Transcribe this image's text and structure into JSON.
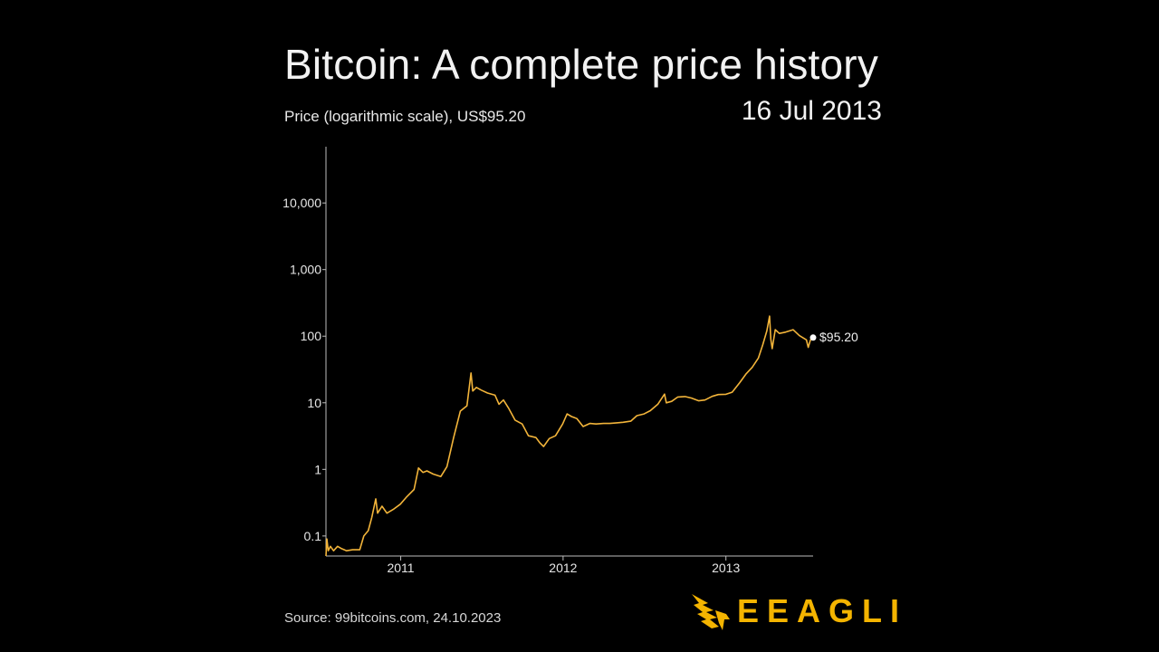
{
  "header": {
    "title": "Bitcoin: A complete price history",
    "subtitle": "Price (logarithmic scale), US$95.20",
    "date": "16 Jul 2013"
  },
  "footer": {
    "source": "Source: 99bitcoins.com, 24.10.2023",
    "brand": "EEAGLI"
  },
  "colors": {
    "background": "#000000",
    "line": "#f2b43a",
    "axis": "#bdbdbd",
    "brand": "#f4b400"
  },
  "chart_data": {
    "type": "line",
    "title": "Bitcoin: A complete price history",
    "ylabel": "Price (logarithmic scale), US$95.20",
    "xlabel": "",
    "y_scale": "log",
    "ylim": [
      0.05,
      70000
    ],
    "xlim": [
      "2010-07-17",
      "2013-07-16"
    ],
    "y_ticks": [
      {
        "value": 0.1,
        "label": "0.1"
      },
      {
        "value": 1,
        "label": "1"
      },
      {
        "value": 10,
        "label": "10"
      },
      {
        "value": 100,
        "label": "100"
      },
      {
        "value": 1000,
        "label": "1,000"
      },
      {
        "value": 10000,
        "label": "10,000"
      }
    ],
    "x_ticks": [
      {
        "value": "2011-01-01",
        "label": "2011"
      },
      {
        "value": "2012-01-01",
        "label": "2012"
      },
      {
        "value": "2013-01-01",
        "label": "2013"
      }
    ],
    "grid": false,
    "end_label": "$95.20",
    "series": [
      {
        "points": [
          [
            "2010-07-17",
            0.05
          ],
          [
            "2010-07-19",
            0.09
          ],
          [
            "2010-07-22",
            0.06
          ],
          [
            "2010-07-27",
            0.07
          ],
          [
            "2010-08-03",
            0.06
          ],
          [
            "2010-08-12",
            0.07
          ],
          [
            "2010-08-20",
            0.065
          ],
          [
            "2010-09-01",
            0.06
          ],
          [
            "2010-09-15",
            0.062
          ],
          [
            "2010-10-01",
            0.062
          ],
          [
            "2010-10-10",
            0.1
          ],
          [
            "2010-10-20",
            0.12
          ],
          [
            "2010-10-28",
            0.19
          ],
          [
            "2010-11-06",
            0.36
          ],
          [
            "2010-11-10",
            0.22
          ],
          [
            "2010-11-20",
            0.28
          ],
          [
            "2010-12-01",
            0.22
          ],
          [
            "2010-12-15",
            0.25
          ],
          [
            "2010-12-31",
            0.3
          ],
          [
            "2011-01-15",
            0.39
          ],
          [
            "2011-01-31",
            0.5
          ],
          [
            "2011-02-10",
            1.05
          ],
          [
            "2011-02-20",
            0.9
          ],
          [
            "2011-03-01",
            0.95
          ],
          [
            "2011-03-15",
            0.85
          ],
          [
            "2011-04-01",
            0.78
          ],
          [
            "2011-04-15",
            1.1
          ],
          [
            "2011-04-30",
            3.0
          ],
          [
            "2011-05-15",
            7.5
          ],
          [
            "2011-05-30",
            9.0
          ],
          [
            "2011-06-08",
            28.0
          ],
          [
            "2011-06-12",
            15.0
          ],
          [
            "2011-06-20",
            17.0
          ],
          [
            "2011-07-01",
            15.5
          ],
          [
            "2011-07-15",
            14.0
          ],
          [
            "2011-08-01",
            13.0
          ],
          [
            "2011-08-10",
            9.5
          ],
          [
            "2011-08-20",
            11.0
          ],
          [
            "2011-09-01",
            8.2
          ],
          [
            "2011-09-15",
            5.5
          ],
          [
            "2011-10-01",
            4.8
          ],
          [
            "2011-10-15",
            3.2
          ],
          [
            "2011-11-01",
            3.0
          ],
          [
            "2011-11-10",
            2.5
          ],
          [
            "2011-11-18",
            2.2
          ],
          [
            "2011-12-01",
            2.9
          ],
          [
            "2011-12-15",
            3.2
          ],
          [
            "2011-12-31",
            4.8
          ],
          [
            "2012-01-10",
            6.8
          ],
          [
            "2012-01-20",
            6.2
          ],
          [
            "2012-02-01",
            5.8
          ],
          [
            "2012-02-15",
            4.4
          ],
          [
            "2012-03-01",
            4.9
          ],
          [
            "2012-03-15",
            4.8
          ],
          [
            "2012-04-01",
            4.9
          ],
          [
            "2012-04-15",
            4.9
          ],
          [
            "2012-05-01",
            5.0
          ],
          [
            "2012-05-15",
            5.1
          ],
          [
            "2012-06-01",
            5.3
          ],
          [
            "2012-06-15",
            6.4
          ],
          [
            "2012-07-01",
            6.8
          ],
          [
            "2012-07-15",
            7.6
          ],
          [
            "2012-08-01",
            9.5
          ],
          [
            "2012-08-16",
            13.5
          ],
          [
            "2012-08-20",
            10.0
          ],
          [
            "2012-09-01",
            10.5
          ],
          [
            "2012-09-15",
            12.2
          ],
          [
            "2012-10-01",
            12.4
          ],
          [
            "2012-10-15",
            11.8
          ],
          [
            "2012-11-01",
            10.7
          ],
          [
            "2012-11-15",
            11.0
          ],
          [
            "2012-12-01",
            12.5
          ],
          [
            "2012-12-15",
            13.3
          ],
          [
            "2013-01-01",
            13.4
          ],
          [
            "2013-01-15",
            14.4
          ],
          [
            "2013-02-01",
            20.0
          ],
          [
            "2013-02-15",
            27.0
          ],
          [
            "2013-03-01",
            34.0
          ],
          [
            "2013-03-15",
            47.0
          ],
          [
            "2013-03-25",
            75.0
          ],
          [
            "2013-04-03",
            120.0
          ],
          [
            "2013-04-09",
            200.0
          ],
          [
            "2013-04-12",
            90.0
          ],
          [
            "2013-04-15",
            65.0
          ],
          [
            "2013-04-22",
            125.0
          ],
          [
            "2013-05-01",
            110.0
          ],
          [
            "2013-05-15",
            115.0
          ],
          [
            "2013-06-01",
            125.0
          ],
          [
            "2013-06-15",
            102.0
          ],
          [
            "2013-07-01",
            88.0
          ],
          [
            "2013-07-05",
            68.0
          ],
          [
            "2013-07-10",
            88.0
          ],
          [
            "2013-07-16",
            95.2
          ]
        ]
      }
    ]
  }
}
